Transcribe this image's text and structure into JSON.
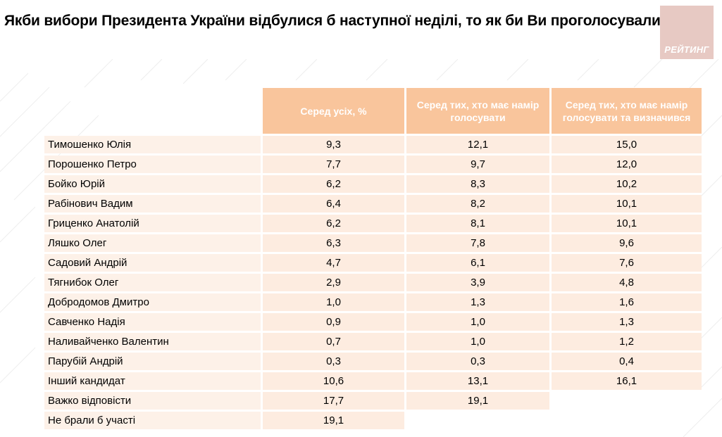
{
  "title": "Якби вибори Президента України відбулися б наступної неділі, то як би Ви проголосували?",
  "logo": {
    "text": "РЕЙТИНГ"
  },
  "table": {
    "headers": [
      "Серед усіх, %",
      "Серед тих, хто має намір голосувати",
      "Серед тих, хто має намір голосувати та визначився"
    ],
    "rows": [
      {
        "name": "Тимошенко Юлія",
        "all": "9,3",
        "voters": "12,1",
        "decided": "15,0"
      },
      {
        "name": "Порошенко Петро",
        "all": "7,7",
        "voters": "9,7",
        "decided": "12,0"
      },
      {
        "name": "Бойко Юрій",
        "all": "6,2",
        "voters": "8,3",
        "decided": "10,2"
      },
      {
        "name": "Рабінович Вадим",
        "all": "6,4",
        "voters": "8,2",
        "decided": "10,1"
      },
      {
        "name": "Гриценко Анатолій",
        "all": "6,2",
        "voters": "8,1",
        "decided": "10,1"
      },
      {
        "name": "Ляшко Олег",
        "all": "6,3",
        "voters": "7,8",
        "decided": "9,6"
      },
      {
        "name": "Садовий Андрій",
        "all": "4,7",
        "voters": "6,1",
        "decided": "7,6"
      },
      {
        "name": "Тягнибок Олег",
        "all": "2,9",
        "voters": "3,9",
        "decided": "4,8"
      },
      {
        "name": "Добродомов Дмитро",
        "all": "1,0",
        "voters": "1,3",
        "decided": "1,6"
      },
      {
        "name": "Савченко Надія",
        "all": "0,9",
        "voters": "1,0",
        "decided": "1,3"
      },
      {
        "name": "Наливайченко Валентин",
        "all": "0,7",
        "voters": "1,0",
        "decided": "1,2"
      },
      {
        "name": "Парубій Андрій",
        "all": "0,3",
        "voters": "0,3",
        "decided": "0,4"
      },
      {
        "name": "Інший кандидат",
        "all": "10,6",
        "voters": "13,1",
        "decided": "16,1"
      },
      {
        "name": "Важко відповісти",
        "all": "17,7",
        "voters": "19,1",
        "decided": null
      },
      {
        "name": "Не брали б участі",
        "all": "19,1",
        "voters": null,
        "decided": null
      }
    ]
  },
  "colors": {
    "header_bg": "#f9c59c",
    "cell_bg": "#fdece0",
    "logo_bg": "#e7c9c3",
    "decor_lines": "#eeeeee"
  }
}
